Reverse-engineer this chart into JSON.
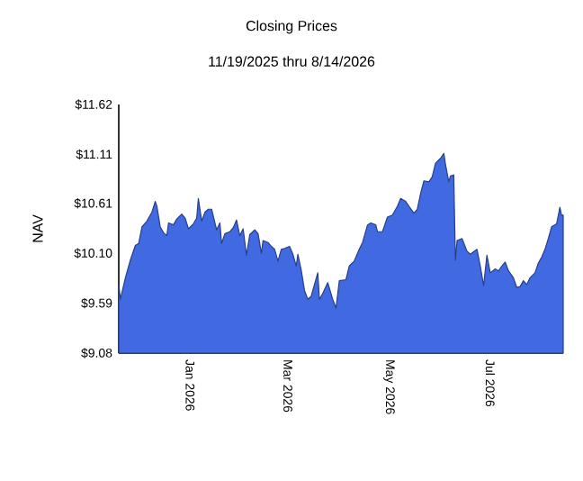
{
  "chart_data": {
    "type": "area",
    "title": "Closing Prices",
    "subtitle": "11/19/2025 thru 8/14/2026",
    "ylabel": "NAV",
    "series": [
      {
        "color": "#4169e1",
        "x": [
          "2025-11-19",
          "2025-11-20",
          "2025-11-23",
          "2025-11-26",
          "2025-11-29",
          "2025-12-01",
          "2025-12-03",
          "2025-12-06",
          "2025-12-09",
          "2025-12-11",
          "2025-12-12",
          "2025-12-14",
          "2025-12-16",
          "2025-12-18",
          "2025-12-19",
          "2025-12-22",
          "2025-12-24",
          "2025-12-27",
          "2025-12-29",
          "2025-12-31",
          "2026-01-03",
          "2026-01-05",
          "2026-01-06",
          "2026-01-08",
          "2026-01-10",
          "2026-01-12",
          "2026-01-14",
          "2026-01-17",
          "2026-01-19",
          "2026-01-20",
          "2026-01-22",
          "2026-01-25",
          "2026-01-27",
          "2026-01-29",
          "2026-01-31",
          "2026-02-02",
          "2026-02-04",
          "2026-02-06",
          "2026-02-09",
          "2026-02-11",
          "2026-02-13",
          "2026-02-14",
          "2026-02-17",
          "2026-02-19",
          "2026-02-21",
          "2026-02-23",
          "2026-02-25",
          "2026-02-27",
          "2026-03-02",
          "2026-03-04",
          "2026-03-06",
          "2026-03-07",
          "2026-03-09",
          "2026-03-11",
          "2026-03-13",
          "2026-03-15",
          "2026-03-17",
          "2026-03-19",
          "2026-03-20",
          "2026-03-22",
          "2026-03-25",
          "2026-03-28",
          "2026-03-30",
          "2026-04-01",
          "2026-04-05",
          "2026-04-07",
          "2026-04-10",
          "2026-04-13",
          "2026-04-15",
          "2026-04-18",
          "2026-04-20",
          "2026-04-23",
          "2026-04-24",
          "2026-04-27",
          "2026-04-30",
          "2026-05-03",
          "2026-05-06",
          "2026-05-08",
          "2026-05-11",
          "2026-05-13",
          "2026-05-16",
          "2026-05-18",
          "2026-05-20",
          "2026-05-22",
          "2026-05-25",
          "2026-05-27",
          "2026-05-29",
          "2026-06-01",
          "2026-06-03",
          "2026-06-04",
          "2026-06-06",
          "2026-06-07",
          "2026-06-09",
          "2026-06-10",
          "2026-06-11",
          "2026-06-14",
          "2026-06-17",
          "2026-06-19",
          "2026-06-23",
          "2026-06-25",
          "2026-06-27",
          "2026-06-29",
          "2026-07-01",
          "2026-07-04",
          "2026-07-06",
          "2026-07-08",
          "2026-07-10",
          "2026-07-12",
          "2026-07-15",
          "2026-07-17",
          "2026-07-19",
          "2026-07-21",
          "2026-07-23",
          "2026-07-25",
          "2026-07-28",
          "2026-07-30",
          "2026-08-01",
          "2026-08-03",
          "2026-08-05",
          "2026-08-07",
          "2026-08-10",
          "2026-08-12",
          "2026-08-13",
          "2026-08-14"
        ],
        "values": [
          9.78,
          9.63,
          9.85,
          10.03,
          10.18,
          10.2,
          10.37,
          10.43,
          10.52,
          10.63,
          10.58,
          10.37,
          10.31,
          10.28,
          10.41,
          10.39,
          10.45,
          10.5,
          10.46,
          10.35,
          10.4,
          10.46,
          10.66,
          10.43,
          10.52,
          10.55,
          10.55,
          10.34,
          10.41,
          10.2,
          10.3,
          10.32,
          10.36,
          10.44,
          10.28,
          10.35,
          10.08,
          10.29,
          10.34,
          10.3,
          10.1,
          10.23,
          10.21,
          10.17,
          10.14,
          10.02,
          10.14,
          10.15,
          10.17,
          10.09,
          9.97,
          10.09,
          9.93,
          9.72,
          9.63,
          9.66,
          9.78,
          9.9,
          9.63,
          9.69,
          9.8,
          9.63,
          9.54,
          9.82,
          9.83,
          9.97,
          10.02,
          10.14,
          10.21,
          10.39,
          10.41,
          10.39,
          10.32,
          10.32,
          10.47,
          10.49,
          10.58,
          10.66,
          10.63,
          10.58,
          10.51,
          10.55,
          10.71,
          10.84,
          10.83,
          10.88,
          11.02,
          11.07,
          11.12,
          11.01,
          10.83,
          10.89,
          10.9,
          10.03,
          10.23,
          10.25,
          10.12,
          10.09,
          10.14,
          9.97,
          9.77,
          10.08,
          9.9,
          9.94,
          9.92,
          9.97,
          10.01,
          9.92,
          9.85,
          9.75,
          9.76,
          9.82,
          9.78,
          9.85,
          9.9,
          10.0,
          10.06,
          10.14,
          10.25,
          10.37,
          10.4,
          10.57,
          10.49,
          10.49
        ]
      }
    ],
    "xlim": [
      "2025-11-19",
      "2026-08-14"
    ],
    "xticks": [
      {
        "value": "2026-01-01",
        "label": "Jan 2026"
      },
      {
        "value": "2026-03-01",
        "label": "Mar 2026"
      },
      {
        "value": "2026-05-01",
        "label": "May 2026"
      },
      {
        "value": "2026-07-01",
        "label": "Jul 2026"
      }
    ],
    "ylim": [
      9.08,
      11.62
    ],
    "yticks": [
      {
        "value": 9.08,
        "label": "$9.08"
      },
      {
        "value": 9.59,
        "label": "$9.59"
      },
      {
        "value": 10.1,
        "label": "$10.10"
      },
      {
        "value": 10.61,
        "label": "$10.61"
      },
      {
        "value": 11.11,
        "label": "$11.11"
      },
      {
        "value": 11.62,
        "label": "$11.62"
      }
    ]
  }
}
